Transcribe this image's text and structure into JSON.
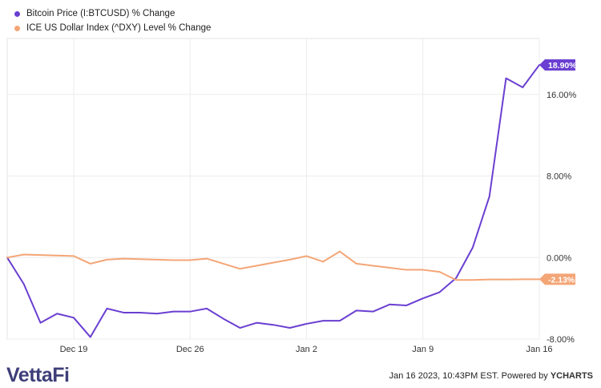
{
  "legend": {
    "items": [
      {
        "label": "Bitcoin Price (I:BTCUSD) % Change",
        "color": "#6a3fd1"
      },
      {
        "label": "ICE US Dollar Index (^DXY) Level % Change",
        "color": "#f4a576"
      }
    ]
  },
  "footer": {
    "brand": "VettaFi",
    "timestamp": "Jan 16 2023, 10:43PM EST.",
    "powered_by": "Powered by",
    "source_logo": "YCHARTS"
  },
  "chart_data": {
    "type": "line",
    "x": [
      "2022-12-15",
      "2022-12-16",
      "2022-12-17",
      "2022-12-18",
      "2022-12-19",
      "2022-12-20",
      "2022-12-21",
      "2022-12-22",
      "2022-12-23",
      "2022-12-24",
      "2022-12-25",
      "2022-12-26",
      "2022-12-27",
      "2022-12-28",
      "2022-12-29",
      "2022-12-30",
      "2022-12-31",
      "2023-01-01",
      "2023-01-02",
      "2023-01-03",
      "2023-01-04",
      "2023-01-05",
      "2023-01-06",
      "2023-01-07",
      "2023-01-08",
      "2023-01-09",
      "2023-01-10",
      "2023-01-11",
      "2023-01-12",
      "2023-01-13",
      "2023-01-14",
      "2023-01-15",
      "2023-01-16"
    ],
    "series": [
      {
        "name": "Bitcoin Price (I:BTCUSD) % Change",
        "color": "#6a3fd1",
        "values": [
          0.0,
          -2.6,
          -6.4,
          -5.5,
          -5.9,
          -7.8,
          -5.0,
          -5.4,
          -5.4,
          -5.5,
          -5.3,
          -5.3,
          -5.0,
          -6.0,
          -6.9,
          -6.4,
          -6.6,
          -6.9,
          -6.5,
          -6.2,
          -6.2,
          -5.2,
          -5.3,
          -4.6,
          -4.7,
          -4.0,
          -3.4,
          -2.0,
          1.0,
          6.0,
          17.6,
          16.7,
          18.9
        ]
      },
      {
        "name": "ICE US Dollar Index (^DXY) Level % Change",
        "color": "#f4a576",
        "values": [
          0.0,
          0.3,
          0.25,
          0.2,
          0.15,
          -0.6,
          -0.2,
          -0.1,
          -0.15,
          -0.2,
          -0.25,
          -0.25,
          -0.1,
          -0.6,
          -1.1,
          -0.8,
          -0.5,
          -0.2,
          0.15,
          -0.4,
          0.6,
          -0.6,
          -0.8,
          -1.0,
          -1.2,
          -1.2,
          -1.4,
          -2.2,
          -2.2,
          -2.15,
          -2.15,
          -2.13,
          -2.13
        ]
      }
    ],
    "x_ticks": [
      {
        "date": "2022-12-19",
        "label": "Dec 19"
      },
      {
        "date": "2022-12-26",
        "label": "Dec 26"
      },
      {
        "date": "2023-01-02",
        "label": "Jan 2"
      },
      {
        "date": "2023-01-09",
        "label": "Jan 9"
      },
      {
        "date": "2023-01-16",
        "label": "Jan 16"
      }
    ],
    "y_ticks": [
      16,
      8,
      0,
      -8
    ],
    "y_tick_labels": [
      "16.00%",
      "8.00%",
      "0.00%",
      "-8.00%"
    ],
    "ylim": [
      -8.0,
      21.5
    ],
    "end_labels": [
      "18.90%",
      "-2.13%"
    ],
    "grid": true,
    "legend_position": "top-left"
  }
}
